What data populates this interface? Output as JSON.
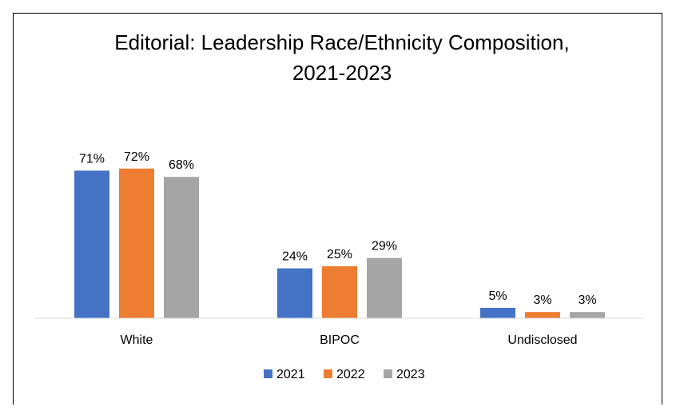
{
  "chart_data": {
    "type": "bar",
    "title": [
      "Editorial: Leadership Race/Ethnicity Composition,",
      "2021-2023"
    ],
    "categories": [
      "White",
      "BIPOC",
      "Undisclosed"
    ],
    "series": [
      {
        "name": "2021",
        "values": [
          71,
          24,
          5
        ],
        "labels": [
          "71%",
          "24%",
          "5%"
        ],
        "color": "#4472c4"
      },
      {
        "name": "2022",
        "values": [
          72,
          25,
          3
        ],
        "labels": [
          "72%",
          "25%",
          "3%"
        ],
        "color": "#ed7d31"
      },
      {
        "name": "2023",
        "values": [
          68,
          29,
          3
        ],
        "labels": [
          "68%",
          "29%",
          "3%"
        ],
        "color": "#a5a5a5"
      }
    ],
    "ylim": [
      0,
      72
    ],
    "axis_line_color": "#d9d9d9",
    "grid": false,
    "legend_position": "bottom"
  }
}
